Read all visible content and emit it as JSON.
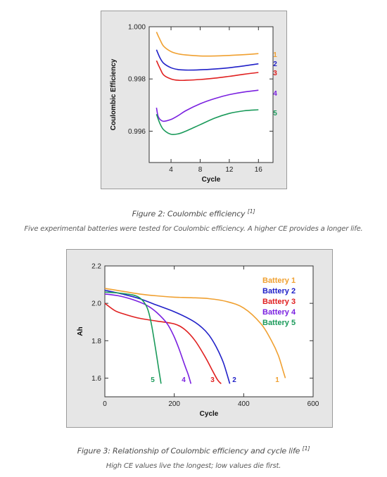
{
  "figure2": {
    "caption_title": "Figure 2: Coulombic efficiency",
    "caption_ref": "[1]",
    "caption_text": "Five experimental batteries were tested for Coulombic efficiency. A higher CE provides a longer life."
  },
  "figure3": {
    "caption_title": "Figure 3: Relationship of Coulombic efficiency and cycle life",
    "caption_ref": "[1]",
    "caption_text": "High CE values live the longest; low values die first."
  },
  "chart_data": [
    {
      "type": "line",
      "xlabel": "Cycle",
      "ylabel": "Coulombic Efficiency",
      "xlim": [
        1,
        18
      ],
      "ylim": [
        0.9948,
        1.0
      ],
      "xticks": [
        4,
        8,
        12,
        16
      ],
      "yticks": [
        0.996,
        0.998,
        1.0
      ],
      "ytick_labels": [
        "0.996",
        "0.998",
        "1.000"
      ],
      "series": [
        {
          "name": "1",
          "color": "#f0a030",
          "x": [
            2,
            2.5,
            3,
            4,
            5,
            6,
            8,
            10,
            12,
            14,
            16
          ],
          "y": [
            0.9998,
            0.9995,
            0.99925,
            0.99905,
            0.99896,
            0.99892,
            0.99888,
            0.99888,
            0.9989,
            0.99893,
            0.99897
          ]
        },
        {
          "name": "2",
          "color": "#2020c8",
          "x": [
            2,
            2.5,
            3,
            4,
            5,
            6,
            8,
            10,
            12,
            14,
            16
          ],
          "y": [
            0.99912,
            0.9988,
            0.9986,
            0.99843,
            0.99836,
            0.99834,
            0.99835,
            0.99838,
            0.99843,
            0.9985,
            0.99858
          ]
        },
        {
          "name": "3",
          "color": "#e02020",
          "x": [
            2,
            2.5,
            3,
            4,
            5,
            6,
            8,
            10,
            12,
            14,
            16
          ],
          "y": [
            0.9987,
            0.9984,
            0.99815,
            0.998,
            0.99795,
            0.99795,
            0.99798,
            0.99803,
            0.9981,
            0.99818,
            0.99825
          ]
        },
        {
          "name": "4",
          "color": "#7a20e0",
          "x": [
            2,
            2.2,
            2.5,
            3,
            4,
            5,
            6,
            8,
            10,
            12,
            14,
            16
          ],
          "y": [
            0.9969,
            0.9966,
            0.99645,
            0.99638,
            0.99645,
            0.9966,
            0.99678,
            0.99705,
            0.99725,
            0.9974,
            0.9975,
            0.99757
          ]
        },
        {
          "name": "5",
          "color": "#1a9a5a",
          "x": [
            2,
            2.5,
            3,
            4,
            5,
            6,
            8,
            10,
            12,
            14,
            16
          ],
          "y": [
            0.99665,
            0.99628,
            0.99605,
            0.99588,
            0.9959,
            0.996,
            0.99625,
            0.9965,
            0.99668,
            0.99678,
            0.99682
          ]
        }
      ]
    },
    {
      "type": "line",
      "xlabel": "Cycle",
      "ylabel": "Ah",
      "xlim": [
        0,
        600
      ],
      "ylim": [
        1.5,
        2.2
      ],
      "xticks": [
        0,
        200,
        400,
        600
      ],
      "yticks": [
        1.6,
        1.8,
        2.0,
        2.2
      ],
      "ytick_labels": [
        "1.6",
        "1.8",
        "2.0",
        "2.2"
      ],
      "legend_position": "top-right",
      "series": [
        {
          "name": "Battery 1",
          "end_label": "1",
          "color": "#f0a030",
          "x": [
            0,
            50,
            100,
            150,
            200,
            250,
            300,
            350,
            400,
            450,
            480,
            500,
            515,
            520
          ],
          "y": [
            2.08,
            2.065,
            2.05,
            2.04,
            2.033,
            2.03,
            2.025,
            2.01,
            1.975,
            1.89,
            1.8,
            1.72,
            1.63,
            1.6
          ]
        },
        {
          "name": "Battery 2",
          "end_label": "2",
          "color": "#2020c8",
          "x": [
            0,
            50,
            100,
            150,
            200,
            250,
            280,
            300,
            320,
            340,
            352,
            360
          ],
          "y": [
            2.07,
            2.05,
            2.025,
            1.99,
            1.955,
            1.91,
            1.87,
            1.83,
            1.77,
            1.69,
            1.62,
            1.57
          ]
        },
        {
          "name": "Battery 3",
          "end_label": "3",
          "color": "#e02020",
          "x": [
            0,
            30,
            60,
            100,
            150,
            200,
            230,
            260,
            290,
            310,
            325,
            335
          ],
          "y": [
            2.0,
            1.96,
            1.94,
            1.92,
            1.905,
            1.89,
            1.86,
            1.8,
            1.71,
            1.64,
            1.59,
            1.57
          ]
        },
        {
          "name": "Battery 4",
          "end_label": "4",
          "color": "#7a20e0",
          "x": [
            0,
            40,
            80,
            120,
            150,
            180,
            200,
            215,
            230,
            240,
            248
          ],
          "y": [
            2.05,
            2.04,
            2.02,
            1.99,
            1.95,
            1.89,
            1.82,
            1.75,
            1.67,
            1.62,
            1.57
          ]
        },
        {
          "name": "Battery 5",
          "end_label": "5",
          "color": "#1a9a5a",
          "x": [
            0,
            40,
            80,
            100,
            115,
            125,
            135,
            145,
            155,
            162
          ],
          "y": [
            2.06,
            2.055,
            2.045,
            2.03,
            2.0,
            1.96,
            1.88,
            1.77,
            1.65,
            1.57
          ]
        }
      ]
    }
  ]
}
